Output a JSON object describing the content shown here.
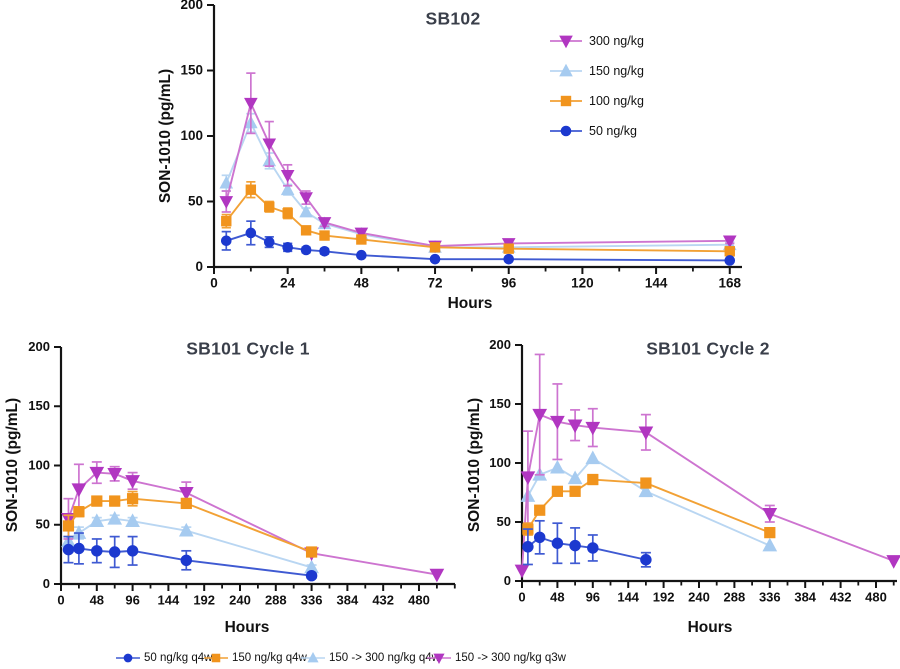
{
  "figure": {
    "background": "#ffffff",
    "axis_color": "#141414",
    "title_color": "#3a3f4a",
    "tick_color": "#111111"
  },
  "chart_data": [
    {
      "id": "sb102",
      "type": "line",
      "title": "SB102",
      "xlabel": "Hours",
      "ylabel": "SON-1010 (pg/mL)",
      "xlim": [
        0,
        172
      ],
      "ylim": [
        0,
        200
      ],
      "xticks": [
        0,
        24,
        48,
        72,
        96,
        120,
        144,
        168
      ],
      "xminor_step": 12,
      "yticks": [
        0,
        50,
        100,
        150,
        200
      ],
      "legend_position": "top-right",
      "legend_order": [
        1,
        0,
        2,
        3
      ],
      "series": [
        {
          "name": "150 ng/kg",
          "marker": "triangle-up",
          "color": "#a6cbf0",
          "line_color": "#b9d6f2",
          "x": [
            4,
            12,
            18,
            24,
            30,
            36,
            48,
            72,
            96,
            168
          ],
          "y": [
            64,
            110,
            81,
            59,
            42,
            33,
            25,
            15,
            15,
            17
          ],
          "err": [
            6,
            7,
            6,
            4,
            3,
            2,
            2,
            2,
            2,
            2
          ]
        },
        {
          "name": "300 ng/kg",
          "marker": "triangle-down",
          "color": "#b136c1",
          "line_color": "#cd74d0",
          "x": [
            4,
            12,
            18,
            24,
            30,
            36,
            48,
            72,
            96,
            168
          ],
          "y": [
            50,
            125,
            94,
            70,
            53,
            34,
            26,
            16,
            18,
            20
          ],
          "err": [
            8,
            23,
            17,
            8,
            5,
            3,
            2,
            2,
            3,
            2
          ]
        },
        {
          "name": "100 ng/kg",
          "marker": "square",
          "color": "#f1941d",
          "line_color": "#f2a135",
          "x": [
            4,
            12,
            18,
            24,
            30,
            36,
            48,
            72,
            96,
            168
          ],
          "y": [
            35,
            59,
            46,
            41,
            28,
            24,
            21,
            15,
            14,
            12
          ],
          "err": [
            5,
            6,
            4,
            4,
            2,
            2,
            2,
            2,
            2,
            2
          ]
        },
        {
          "name": "50 ng/kg",
          "marker": "circle",
          "color": "#1c39cf",
          "line_color": "#3f5ad2",
          "x": [
            4,
            12,
            18,
            24,
            30,
            36,
            48,
            72,
            96,
            168
          ],
          "y": [
            20,
            26,
            19,
            15,
            13,
            12,
            9,
            6,
            6,
            5
          ],
          "err": [
            7,
            9,
            4,
            3,
            2,
            2,
            1,
            1,
            1,
            1
          ]
        }
      ]
    },
    {
      "id": "sb101-cycle1",
      "type": "line",
      "title": "SB101 Cycle 1",
      "xlabel": "Hours",
      "ylabel": "SON-1010 (pg/mL)",
      "xlim": [
        0,
        528
      ],
      "ylim": [
        0,
        200
      ],
      "xticks": [
        0,
        48,
        96,
        144,
        192,
        240,
        288,
        336,
        384,
        432,
        480
      ],
      "xminor_step": 24,
      "yticks": [
        0,
        50,
        100,
        150,
        200
      ],
      "series": [
        {
          "name": "150 -> 300 ng/kg q4w",
          "marker": "triangle-up",
          "color": "#a6cbf0",
          "line_color": "#b9d6f2",
          "x": [
            10,
            24,
            48,
            72,
            96,
            168,
            336
          ],
          "y": [
            36,
            43,
            53,
            55,
            53,
            45,
            14
          ],
          "err": [
            9,
            5,
            3,
            3,
            3,
            3,
            2
          ]
        },
        {
          "name": "150 -> 300 ng/kg q3w",
          "marker": "triangle-down",
          "color": "#b136c1",
          "line_color": "#cd74d0",
          "x": [
            10,
            24,
            48,
            72,
            96,
            168,
            336,
            504
          ],
          "y": [
            55,
            80,
            94,
            93,
            87,
            77,
            26,
            8
          ],
          "err": [
            17,
            21,
            9,
            6,
            7,
            9,
            0,
            0
          ]
        },
        {
          "name": "150 ng/kg q4w",
          "marker": "square",
          "color": "#f1941d",
          "line_color": "#f2a135",
          "x": [
            10,
            24,
            48,
            72,
            96,
            168,
            336
          ],
          "y": [
            49,
            61,
            70,
            70,
            72,
            68,
            27
          ],
          "err": [
            9,
            4,
            4,
            4,
            6,
            4,
            2
          ]
        },
        {
          "name": "50 ng/kg q4w",
          "marker": "circle",
          "color": "#1c39cf",
          "line_color": "#3f5ad2",
          "x": [
            10,
            24,
            48,
            72,
            96,
            168,
            336
          ],
          "y": [
            29,
            30,
            28,
            27,
            28,
            20,
            7
          ],
          "err": [
            11,
            13,
            10,
            13,
            12,
            8,
            2
          ]
        }
      ]
    },
    {
      "id": "sb101-cycle2",
      "type": "line",
      "title": "SB101 Cycle 2",
      "xlabel": "Hours",
      "ylabel": "SON-1010 (pg/mL)",
      "xlim": [
        0,
        528
      ],
      "ylim": [
        0,
        200
      ],
      "xticks": [
        0,
        48,
        96,
        144,
        192,
        240,
        288,
        336,
        384,
        432,
        480
      ],
      "xminor_step": 24,
      "yticks": [
        0,
        50,
        100,
        150,
        200
      ],
      "series": [
        {
          "name": "150 -> 300 ng/kg q4w",
          "marker": "triangle-up",
          "color": "#a6cbf0",
          "line_color": "#b9d6f2",
          "x": [
            8,
            24,
            48,
            72,
            96,
            168,
            336
          ],
          "y": [
            72,
            90,
            96,
            87,
            104,
            76,
            30
          ],
          "err": [
            0,
            0,
            0,
            0,
            0,
            0,
            0
          ]
        },
        {
          "name": "150 -> 300 ng/kg q3w",
          "marker": "triangle-down",
          "color": "#b136c1",
          "line_color": "#cd74d0",
          "x": [
            0,
            8,
            24,
            48,
            72,
            96,
            168,
            336,
            504
          ],
          "y": [
            9,
            88,
            141,
            135,
            132,
            130,
            126,
            57,
            17
          ],
          "err": [
            0,
            39,
            51,
            32,
            13,
            16,
            15,
            7,
            0
          ]
        },
        {
          "name": "150 ng/kg q4w",
          "marker": "square",
          "color": "#f1941d",
          "line_color": "#f2a135",
          "x": [
            8,
            24,
            48,
            72,
            96,
            168,
            336
          ],
          "y": [
            44,
            60,
            76,
            76,
            86,
            83,
            41
          ],
          "err": [
            5,
            3,
            3,
            3,
            4,
            3,
            3
          ]
        },
        {
          "name": "50 ng/kg q4w",
          "marker": "circle",
          "color": "#1c39cf",
          "line_color": "#3f5ad2",
          "x": [
            8,
            24,
            48,
            72,
            96,
            168
          ],
          "y": [
            29,
            37,
            32,
            30,
            28,
            18
          ],
          "err": [
            15,
            14,
            17,
            15,
            11,
            6
          ]
        }
      ]
    }
  ],
  "bottom_legend": {
    "chart_index": 1,
    "order": [
      3,
      2,
      0,
      1
    ]
  }
}
